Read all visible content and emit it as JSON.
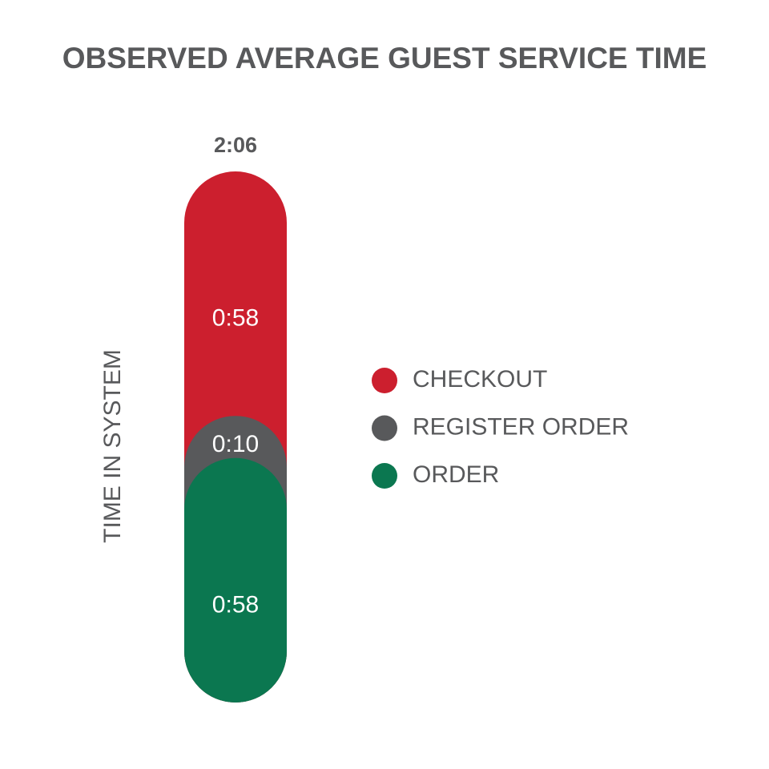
{
  "chart_data": {
    "type": "stacked-pill",
    "title": "OBSERVED AVERAGE GUEST SERVICE TIME",
    "y_label": "TIME IN SYSTEM",
    "total": 126,
    "total_label": "2:06",
    "series": [
      {
        "name": "CHECKOUT",
        "color": "#cc1f2e",
        "values": [
          58
        ],
        "value_labels": [
          "0:58"
        ]
      },
      {
        "name": "REGISTER ORDER",
        "color": "#58595b",
        "values": [
          10
        ],
        "value_labels": [
          "0:10"
        ]
      },
      {
        "name": "ORDER",
        "color": "#0b7750",
        "values": [
          58
        ],
        "value_labels": [
          "0:58"
        ]
      }
    ]
  }
}
